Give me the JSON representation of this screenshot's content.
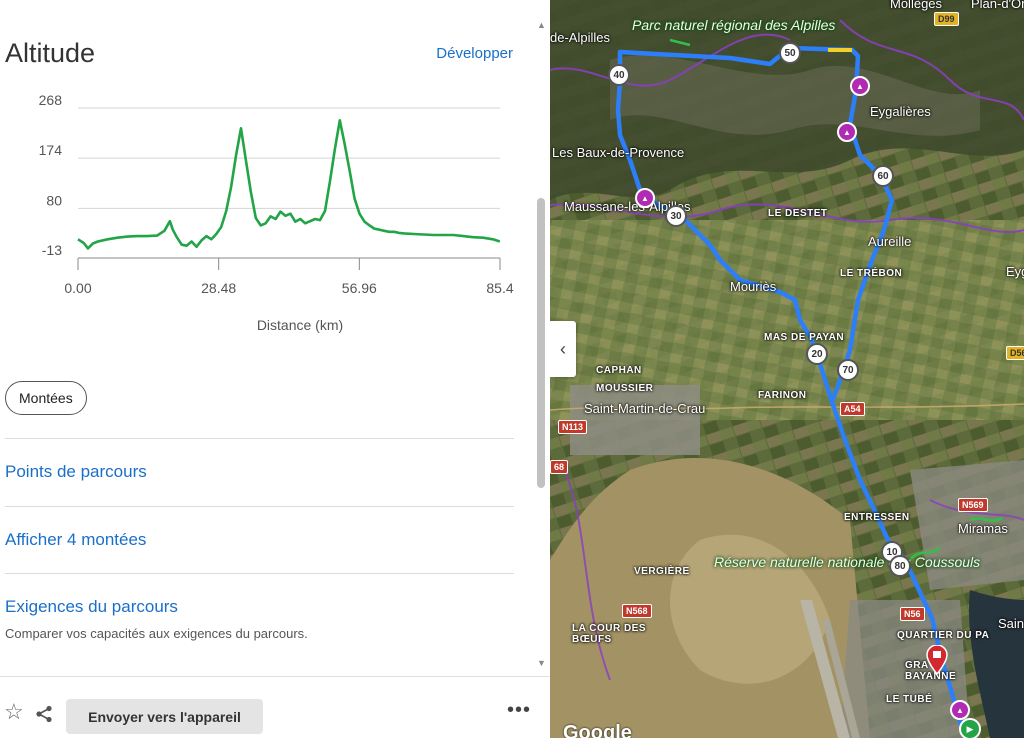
{
  "panel": {
    "title": "Altitude",
    "expand_label": "Développer",
    "climbs_chip": "Montées",
    "waypoints_link": "Points de parcours",
    "show_climbs_link": "Afficher 4 montées",
    "requirements_link": "Exigences du parcours",
    "requirements_desc": "Comparer vos capacités aux exigences du parcours."
  },
  "chart_data": {
    "type": "area",
    "xlabel": "Distance (km)",
    "ylabel": "",
    "x_ticks": [
      "0.00",
      "28.48",
      "56.96",
      "85.4"
    ],
    "y_ticks": [
      "268",
      "174",
      "80",
      "-13"
    ],
    "xlim": [
      0,
      85.44
    ],
    "ylim": [
      -13,
      268
    ],
    "grid": true,
    "series_color": "#22a447",
    "x": [
      0,
      1.2,
      2,
      3,
      4,
      6,
      8,
      10,
      12,
      14,
      16,
      17.5,
      18.6,
      19.2,
      20,
      21,
      22,
      23,
      24,
      25,
      26,
      27,
      28,
      29,
      30,
      31,
      32,
      33,
      34,
      35,
      36,
      37,
      38,
      39,
      40,
      41,
      42,
      43,
      44,
      45,
      46,
      47,
      48,
      49,
      50,
      51,
      52,
      53,
      54,
      55,
      56,
      57,
      58,
      59,
      60,
      61,
      62,
      63,
      64,
      65,
      66,
      68,
      70,
      72,
      74,
      76,
      78,
      80,
      82,
      84,
      85.4
    ],
    "y": [
      22,
      15,
      5,
      14,
      18,
      22,
      25,
      27,
      28,
      28,
      29,
      38,
      56,
      40,
      26,
      12,
      10,
      18,
      8,
      20,
      28,
      22,
      32,
      45,
      75,
      120,
      180,
      230,
      170,
      110,
      62,
      48,
      52,
      65,
      60,
      74,
      66,
      70,
      55,
      60,
      52,
      56,
      60,
      58,
      75,
      130,
      190,
      245,
      200,
      150,
      98,
      70,
      55,
      48,
      42,
      40,
      38,
      36,
      36,
      34,
      33,
      32,
      31,
      30,
      30,
      30,
      28,
      26,
      25,
      22,
      18
    ]
  },
  "bottom_bar": {
    "send_label": "Envoyer vers l'appareil",
    "star_icon": "star-outline-icon",
    "share_icon": "share-icon",
    "more_icon": "more-horizontal-icon"
  },
  "map": {
    "towns": [
      "Les Baux-de-Provence",
      "Maussane-les-Alpilles",
      "Mouriès",
      "Aureille",
      "Eygalières",
      "Saint-Martin-de-Crau",
      "Miramas",
      "Eyg",
      "Sain",
      "de-Alpilles"
    ],
    "localities": [
      "LE DESTET",
      "LE TRÉBON",
      "MAS DE PAYAN",
      "FARINON",
      "CAPHAN",
      "MOUSSIER",
      "ENTRESSEN",
      "VERGIÈRE",
      "LA COUR DES BŒUFS",
      "QUARTIER DU PA",
      "GRA BAYANNE",
      "LE TUBÉ"
    ],
    "park_names": [
      "Parc naturel régional des Alpilles",
      "Réserve naturelle nationale des Coussouls"
    ],
    "roads": [
      "D99",
      "A54",
      "N113",
      "N569",
      "N568",
      "N56",
      "D56",
      "68"
    ],
    "km_markers": [
      "40",
      "50",
      "60",
      "30",
      "20",
      "70",
      "10",
      "80"
    ],
    "top_label": "Mollèges",
    "top_right_label": "Plan-d'Orgon",
    "logo": "Google",
    "route_color": "#2d7ff9"
  }
}
